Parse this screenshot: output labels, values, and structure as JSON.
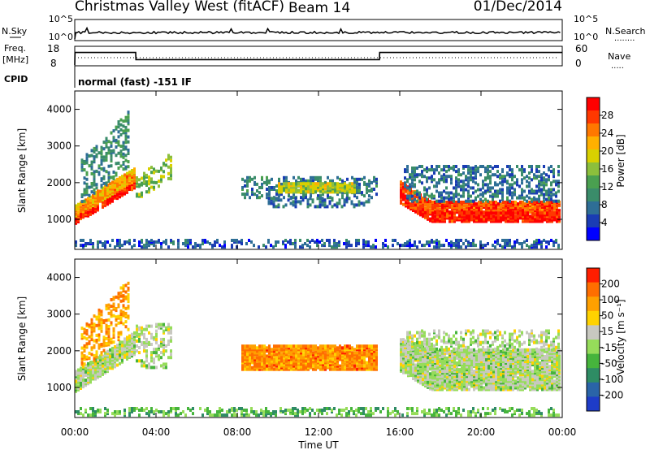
{
  "header": {
    "title": "Christmas Valley West (fitACF)",
    "beam": "Beam 14",
    "date": "01/Dec/2014"
  },
  "panels": {
    "nsky": {
      "left_label": "N.Sky",
      "left_ticks": [
        "10^5",
        "10^0"
      ],
      "right_label": "N.Search",
      "right_ticks": [
        "10^5",
        "10^0"
      ]
    },
    "freq": {
      "left_label_1": "Freq.",
      "left_label_2": "[MHz]",
      "left_ticks": [
        "18",
        "8"
      ],
      "right_label": "Nave",
      "right_ticks": [
        "60",
        "0"
      ]
    },
    "cpid": {
      "label": "CPID",
      "text": "normal (fast) -151 IF"
    }
  },
  "chart_data": [
    {
      "type": "heatmap",
      "name": "power",
      "ylabel": "Slant Range [km]",
      "ylim": [
        180,
        4500
      ],
      "yticks": [
        1000,
        2000,
        3000,
        4000
      ],
      "xlim": [
        0,
        24
      ],
      "colorbar": {
        "label": "Power [dB]",
        "ticks": [
          "4",
          "8",
          "12",
          "16",
          "20",
          "24",
          "28"
        ],
        "colors": [
          "#0000ff",
          "#1a3cb4",
          "#2e6e96",
          "#3a8c6a",
          "#4aa050",
          "#8cbf3c",
          "#d8d000",
          "#ffb000",
          "#ff7800",
          "#ff3800",
          "#ff0000"
        ]
      },
      "bands": [
        {
          "t0": 0.0,
          "t1": 3.0,
          "r0": 850,
          "r1": 1050,
          "r0_end": 1850,
          "r1_end": 2050,
          "level": 0.95
        },
        {
          "t0": 0.0,
          "t1": 3.0,
          "r0": 1050,
          "r1": 1350,
          "r0_end": 2050,
          "r1_end": 2400,
          "level": 0.72
        },
        {
          "t0": 0.3,
          "t1": 2.6,
          "r0": 1350,
          "r1": 2600,
          "r0_end": 2400,
          "r1_end": 3900,
          "level": 0.3,
          "sparse": true
        },
        {
          "t0": 3.0,
          "t1": 4.8,
          "r0": 1500,
          "r1": 2100,
          "r0_end": 2100,
          "r1_end": 2800,
          "level": 0.5,
          "sparse": true
        },
        {
          "t0": 8.2,
          "t1": 14.8,
          "r0": 1550,
          "r1": 2100,
          "level": 0.25,
          "sparse": true
        },
        {
          "t0": 10.0,
          "t1": 13.8,
          "r0": 1700,
          "r1": 1950,
          "level": 0.55
        },
        {
          "t0": 9.5,
          "t1": 14.5,
          "r0": 1300,
          "r1": 1550,
          "level": 0.2,
          "sparse": true
        },
        {
          "t0": 16.0,
          "t1": 24.0,
          "r0": 1150,
          "r1": 1450,
          "r0_start": 1700,
          "r1_start": 2000,
          "level": 0.88
        },
        {
          "t0": 16.0,
          "t1": 24.0,
          "r0": 900,
          "r1": 1150,
          "r0_start": 1400,
          "r1_start": 1700,
          "level": 0.97
        },
        {
          "t0": 16.2,
          "t1": 24.0,
          "r0": 1450,
          "r1": 2400,
          "level": 0.22,
          "sparse": true
        },
        {
          "t0": 0.0,
          "t1": 24.0,
          "r0": 200,
          "r1": 420,
          "level": 0.15,
          "sparse": true
        }
      ]
    },
    {
      "type": "heatmap",
      "name": "velocity",
      "ylabel": "Slant Range [km]",
      "xlabel": "Time UT",
      "ylim": [
        180,
        4500
      ],
      "yticks": [
        1000,
        2000,
        3000,
        4000
      ],
      "xlim": [
        0,
        24
      ],
      "xticks": [
        "00:00",
        "04:00",
        "08:00",
        "12:00",
        "16:00",
        "20:00",
        "00:00"
      ],
      "colorbar": {
        "label": "Velocity [m s⁻¹]",
        "ticks": [
          "200",
          "100",
          "50",
          "15",
          "-15",
          "-50",
          "-100",
          "-200"
        ],
        "colors": [
          "#1e3cc8",
          "#2a64a8",
          "#2e8c64",
          "#46b43c",
          "#96dc5a",
          "#c8c8c0",
          "#ffd200",
          "#ffa000",
          "#ff6e00",
          "#ff1e00"
        ]
      },
      "bands": [
        {
          "t0": 0.0,
          "t1": 3.0,
          "r0": 850,
          "r1": 1400,
          "r0_end": 1900,
          "r1_end": 2500,
          "level": 0.5
        },
        {
          "t0": 0.3,
          "t1": 2.6,
          "r0": 1400,
          "r1": 2600,
          "r0_end": 2500,
          "r1_end": 3900,
          "level": 0.78,
          "sparse": true
        },
        {
          "t0": 3.0,
          "t1": 4.8,
          "r0": 1500,
          "r1": 2700,
          "level": 0.5,
          "sparse": true
        },
        {
          "t0": 8.2,
          "t1": 14.8,
          "r0": 1450,
          "r1": 2100,
          "level": 0.82
        },
        {
          "t0": 16.0,
          "t1": 24.0,
          "r0": 900,
          "r1": 2000,
          "r0_start": 1400,
          "r1_start": 2300,
          "level": 0.5
        },
        {
          "t0": 16.2,
          "t1": 24.0,
          "r0": 2000,
          "r1": 2500,
          "level": 0.5,
          "sparse": true
        },
        {
          "t0": 0.0,
          "t1": 24.0,
          "r0": 200,
          "r1": 400,
          "level": 0.35,
          "sparse": true
        }
      ]
    },
    {
      "type": "line",
      "name": "frequency",
      "ylim": [
        8,
        18
      ],
      "x": [
        0,
        0.01,
        3.0,
        3.01,
        15.0,
        15.01,
        24
      ],
      "y": [
        8,
        15,
        15,
        11,
        11,
        15,
        15
      ]
    },
    {
      "type": "line",
      "name": "nsky",
      "ylim": [
        0,
        5
      ],
      "x": [
        0,
        0.05,
        24
      ],
      "y": [
        0,
        1.8,
        1.8
      ]
    }
  ]
}
